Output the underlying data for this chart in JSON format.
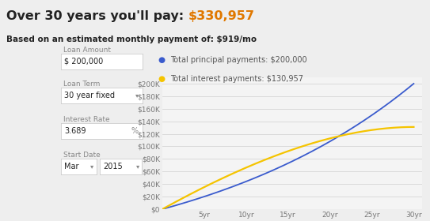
{
  "title_left": "Over 30 years you'll pay: ",
  "title_amount": "$330,957",
  "subtitle": "Based on an estimated monthly payment of: $919/mo",
  "loan_amount_label": "Loan Amount",
  "loan_amount_value": "$ 200,000",
  "loan_term_label": "Loan Term",
  "loan_term_value": "30 year fixed",
  "interest_rate_label": "Interest Rate",
  "interest_rate_value": "3.689",
  "interest_rate_unit": "%",
  "start_date_label": "Start Date",
  "start_date_month": "Mar",
  "start_date_year": "2015",
  "legend_principal_label": "Total principal payments: $200,000",
  "legend_interest_label": "Total interest payments: $130,957",
  "principal_color": "#3a5bcd",
  "interest_color": "#f5c400",
  "background_color": "#eeeeee",
  "chart_bg_color": "#f4f4f4",
  "grid_color": "#d5d5d5",
  "axis_tick_color": "#777777",
  "text_dark": "#222222",
  "text_mid": "#555555",
  "text_light": "#888888",
  "field_border": "#cccccc",
  "orange_color": "#e07800",
  "loan_principal": 200000,
  "loan_term_years": 30,
  "annual_rate": 0.03689,
  "x_ticks": [
    5,
    10,
    15,
    20,
    25,
    30
  ],
  "y_ticks": [
    0,
    20000,
    40000,
    60000,
    80000,
    100000,
    120000,
    140000,
    160000,
    180000,
    200000
  ],
  "y_labels": [
    "$0",
    "$20K",
    "$40K",
    "$60K",
    "$80K",
    "$100K",
    "$120K",
    "$140K",
    "$160K",
    "$180K",
    "$200K"
  ],
  "title_fontsize": 11.5,
  "subtitle_fontsize": 7.5,
  "label_fontsize": 6.5,
  "field_fontsize": 7.0,
  "tick_fontsize": 6.5,
  "legend_fontsize": 7.0
}
